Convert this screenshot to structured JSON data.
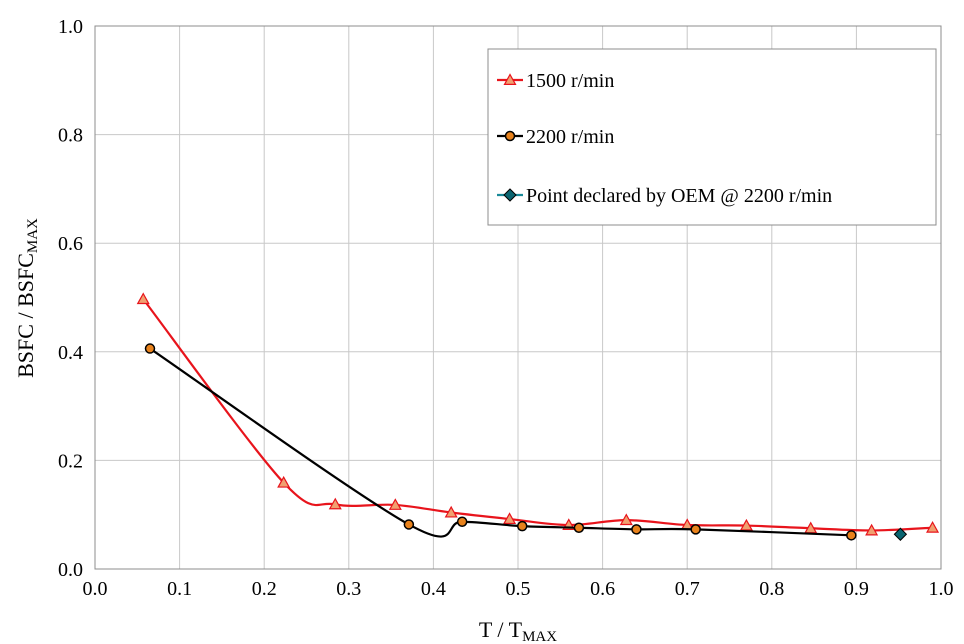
{
  "chart_data": {
    "type": "line",
    "xlabel": "T / T",
    "xlabel_sub": "MAX",
    "ylabel": "BSFC / BSFC",
    "ylabel_sub": "MAX",
    "xlim": [
      0.0,
      1.0
    ],
    "ylim": [
      0.0,
      1.0
    ],
    "x_ticks": [
      "0.0",
      "0.1",
      "0.2",
      "0.3",
      "0.4",
      "0.5",
      "0.6",
      "0.7",
      "0.8",
      "0.9",
      "1.0"
    ],
    "y_ticks": [
      "0.0",
      "0.2",
      "0.4",
      "0.6",
      "0.8",
      "1.0"
    ],
    "grid": true,
    "legend_position": "top-right",
    "series": [
      {
        "name": "1500 r/min",
        "color": "#e8141c",
        "marker": "triangle",
        "marker_fill": "#f0a070",
        "smooth": true,
        "x": [
          0.057,
          0.223,
          0.284,
          0.355,
          0.421,
          0.49,
          0.56,
          0.628,
          0.7,
          0.77,
          0.846,
          0.918,
          0.99
        ],
        "y": [
          0.497,
          0.159,
          0.119,
          0.118,
          0.104,
          0.092,
          0.081,
          0.09,
          0.081,
          0.08,
          0.075,
          0.071,
          0.076
        ]
      },
      {
        "name": "2200 r/min",
        "color": "#000000",
        "marker": "circle",
        "marker_fill": "#e8821c",
        "smooth": true,
        "x": [
          0.065,
          0.371,
          0.434,
          0.505,
          0.572,
          0.64,
          0.71,
          0.894
        ],
        "y": [
          0.406,
          0.082,
          0.087,
          0.079,
          0.076,
          0.073,
          0.073,
          0.062
        ]
      },
      {
        "name": "Point declared by OEM @ 2200 r/min",
        "color": "#1a8a99",
        "marker": "diamond",
        "marker_fill": "#0a6470",
        "smooth": false,
        "x": [
          0.952
        ],
        "y": [
          0.064
        ]
      }
    ]
  }
}
